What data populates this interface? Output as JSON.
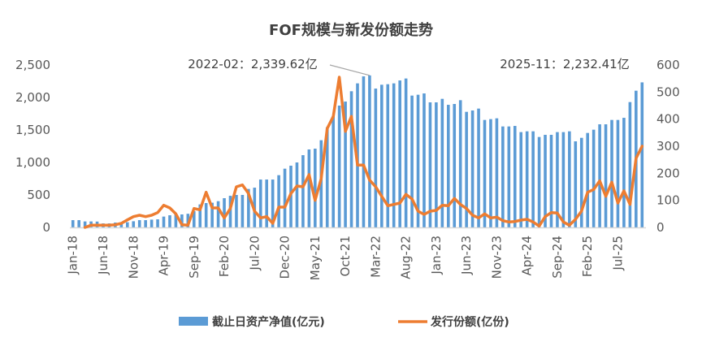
{
  "chart_data": {
    "type": "bar+line",
    "title": "FOF规模与新发份额走势",
    "x_start": "2018-01",
    "tick_labels": [
      "Jan-18",
      "Jun-18",
      "Nov-18",
      "Apr-19",
      "Sep-19",
      "Feb-20",
      "Jul-20",
      "Dec-20",
      "May-21",
      "Oct-21",
      "Mar-22",
      "Aug-22",
      "Jan-23",
      "Jun-23",
      "Nov-23",
      "Apr-24",
      "Sep-24",
      "Feb-25",
      "Jul-25"
    ],
    "tick_every_months": 5,
    "y_left": {
      "min": 0,
      "max": 2500,
      "ticks": [
        "0",
        "500",
        "1,000",
        "1,500",
        "2,000",
        "2,500"
      ]
    },
    "y_right": {
      "min": 0,
      "max": 600,
      "ticks": [
        "0",
        "100",
        "200",
        "300",
        "400",
        "500",
        "600"
      ]
    },
    "grid": false,
    "legend_position": "bottom",
    "series": [
      {
        "name": "截止日资产净值(亿元)",
        "type": "bar",
        "axis": "left",
        "color": "#5B9BD5",
        "values": [
          112,
          112,
          92,
          92,
          90,
          62,
          62,
          75,
          80,
          80,
          95,
          112,
          112,
          120,
          125,
          167,
          187,
          200,
          200,
          210,
          250,
          354,
          375,
          380,
          404,
          450,
          487,
          500,
          500,
          592,
          612,
          737,
          737,
          737,
          804,
          904,
          950,
          1000,
          1112,
          1200,
          1212,
          1342,
          1542,
          1717,
          1875,
          1937,
          2096,
          2217,
          2325,
          2339.62,
          2137,
          2196,
          2204,
          2217,
          2262,
          2292,
          2029,
          2042,
          2062,
          1925,
          1925,
          1979,
          1887,
          1900,
          1958,
          1779,
          1800,
          1829,
          1654,
          1667,
          1679,
          1554,
          1554,
          1562,
          1467,
          1479,
          1479,
          1392,
          1425,
          1425,
          1467,
          1467,
          1479,
          1325,
          1379,
          1454,
          1504,
          1587,
          1587,
          1654,
          1654,
          1687,
          1929,
          2104,
          2232.41
        ]
      },
      {
        "name": "发行份额(亿份)",
        "type": "line",
        "axis": "right",
        "color": "#ED7D31",
        "values": [
          null,
          null,
          0,
          8,
          8,
          8,
          8,
          10,
          15,
          28,
          40,
          45,
          40,
          45,
          55,
          82,
          72,
          50,
          10,
          8,
          70,
          65,
          130,
          72,
          72,
          35,
          70,
          150,
          157,
          125,
          60,
          35,
          40,
          15,
          75,
          75,
          125,
          153,
          150,
          195,
          100,
          180,
          365,
          410,
          555,
          355,
          410,
          230,
          230,
          175,
          150,
          115,
          80,
          85,
          90,
          122,
          105,
          60,
          48,
          60,
          63,
          82,
          80,
          107,
          85,
          70,
          45,
          35,
          50,
          35,
          38,
          25,
          20,
          22,
          27,
          30,
          20,
          5,
          40,
          55,
          53,
          20,
          8,
          30,
          60,
          130,
          140,
          172,
          115,
          167,
          90,
          135,
          85,
          255,
          300
        ]
      }
    ],
    "annotations": [
      {
        "text": "2022-02：2,339.62亿",
        "month": "2022-02"
      },
      {
        "text": "2025-11：2,232.41亿",
        "month": "2025-11"
      }
    ]
  }
}
